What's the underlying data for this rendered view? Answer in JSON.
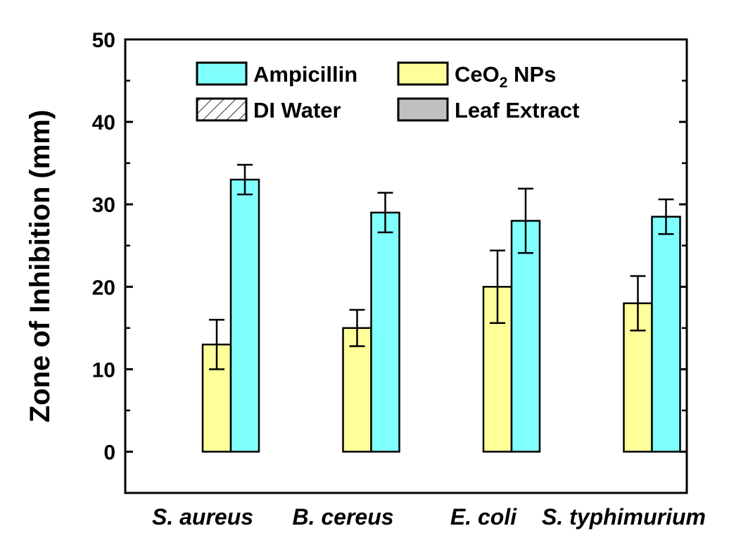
{
  "chart_data": {
    "type": "bar",
    "title": "",
    "xlabel": "",
    "ylabel": "Zone of Inhibition (mm)",
    "ylim": [
      -5,
      50
    ],
    "yticks": [
      0,
      10,
      20,
      30,
      40,
      50
    ],
    "grid": false,
    "legend_position": "top",
    "categories": [
      "S. aureus",
      "B. cereus",
      "E. coli",
      "S. typhimurium"
    ],
    "series": [
      {
        "name": "Leaf Extract",
        "color": "#c0c0c0",
        "pattern": "solid",
        "values": [
          0,
          0,
          0,
          0
        ],
        "errors": [
          0,
          0,
          0,
          0
        ]
      },
      {
        "name": "DI Water",
        "color": "#ffffff",
        "pattern": "hatch",
        "values": [
          0,
          0,
          0,
          0
        ],
        "errors": [
          0,
          0,
          0,
          0
        ]
      },
      {
        "name": "CeO2 NPs",
        "name_parts": [
          "CeO",
          "2",
          " NPs"
        ],
        "color": "#ffff99",
        "pattern": "solid",
        "values": [
          13,
          15,
          20,
          18
        ],
        "errors": [
          3,
          2.2,
          4.4,
          3.3
        ]
      },
      {
        "name": "Ampicillin",
        "color": "#80ffff",
        "pattern": "solid",
        "values": [
          33,
          29,
          28,
          28.5
        ],
        "errors": [
          1.8,
          2.4,
          3.9,
          2.1
        ]
      }
    ],
    "legend_order": [
      "Ampicillin",
      "CeO2 NPs",
      "DI Water",
      "Leaf Extract"
    ]
  }
}
